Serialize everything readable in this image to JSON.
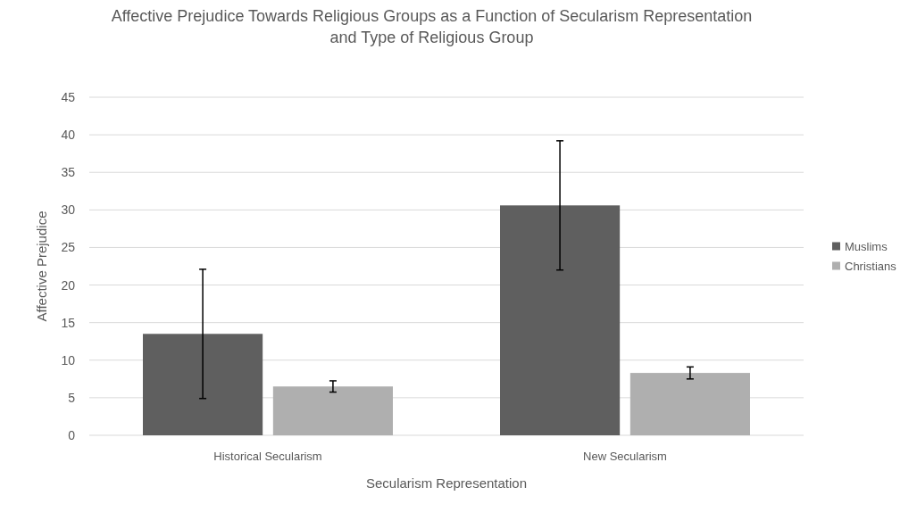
{
  "chart_data": {
    "type": "bar",
    "title": "Affective Prejudice Towards Religious Groups as a Function of Secularism Representation and Type of Religious Group",
    "xlabel": "Secularism Representation",
    "ylabel": "Affective Prejudice",
    "categories": [
      "Historical Secularism",
      "New Secularism"
    ],
    "series": [
      {
        "name": "Muslims",
        "color": "#5f5f5f",
        "values": [
          13.5,
          30.6
        ],
        "errors": [
          8.6,
          8.6
        ]
      },
      {
        "name": "Christians",
        "color": "#afafaf",
        "values": [
          6.5,
          8.3
        ],
        "errors": [
          0.75,
          0.8
        ]
      }
    ],
    "ylim": [
      0,
      45
    ],
    "yticks": [
      0,
      5,
      10,
      15,
      20,
      25,
      30,
      35,
      40,
      45
    ],
    "grid": "y",
    "legend": "right"
  }
}
